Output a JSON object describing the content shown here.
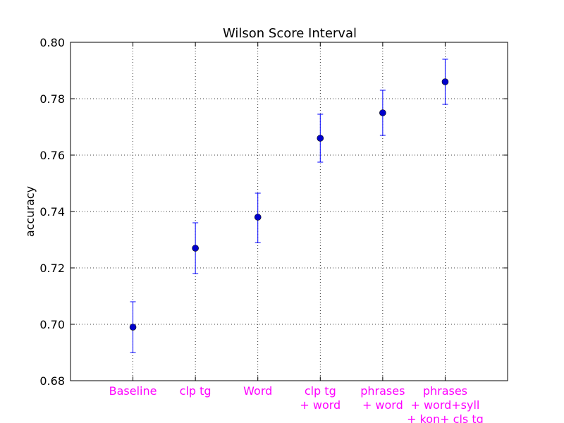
{
  "chart_data": {
    "type": "scatter",
    "title": "Wilson Score Interval",
    "xlabel": "",
    "ylabel": "accuracy",
    "ylim": [
      0.68,
      0.8
    ],
    "yticks": [
      "0.68",
      "0.70",
      "0.72",
      "0.74",
      "0.76",
      "0.78",
      "0.80"
    ],
    "grid": true,
    "categories": [
      [
        "Baseline"
      ],
      [
        "clp tg"
      ],
      [
        "Word"
      ],
      [
        "clp tg",
        "+ word"
      ],
      [
        "phrases",
        "+ word"
      ],
      [
        "phrases",
        "+ word+syll",
        "+ kon+ cls tg"
      ]
    ],
    "values": [
      0.699,
      0.727,
      0.738,
      0.766,
      0.775,
      0.786
    ],
    "lower": [
      0.69,
      0.718,
      0.729,
      0.7575,
      0.767,
      0.778
    ],
    "upper": [
      0.708,
      0.736,
      0.7465,
      0.7745,
      0.783,
      0.794
    ],
    "colors": {
      "marker": "#0000cc",
      "errorbar": "#0000ff",
      "category_label": "#ff00ff",
      "grid": "#000000"
    }
  }
}
